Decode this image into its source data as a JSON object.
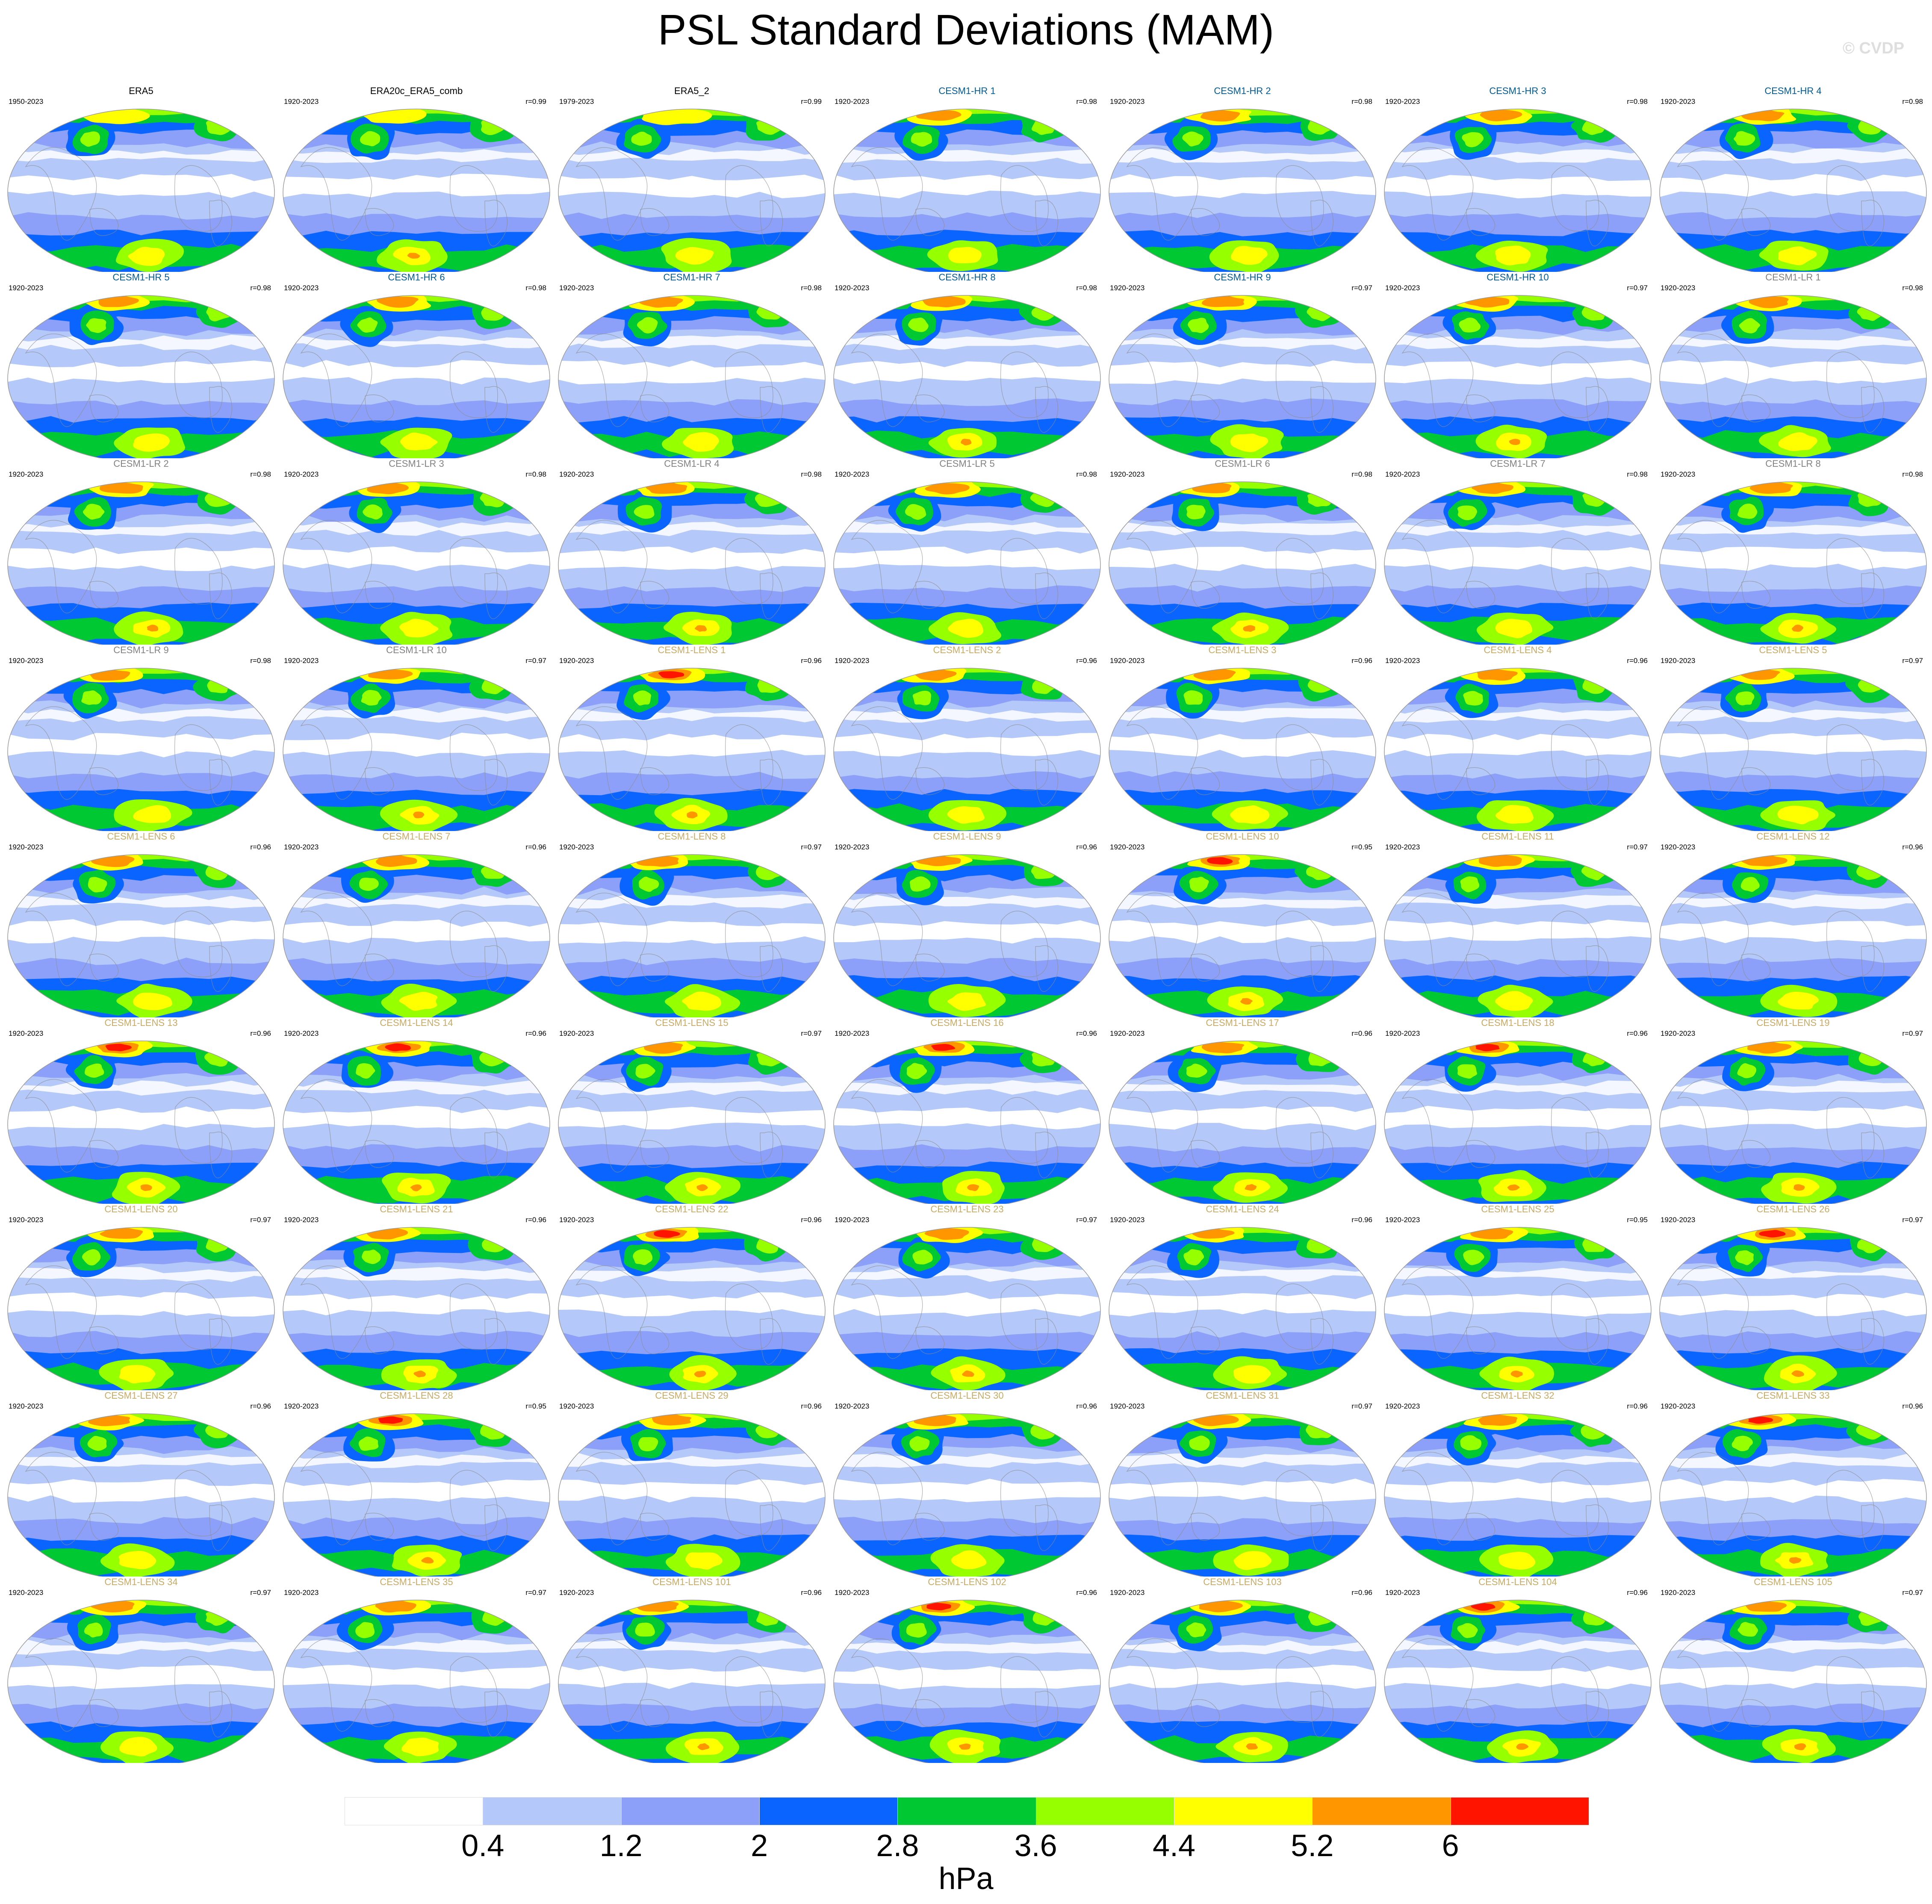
{
  "title": "PSL Standard Deviations (MAM)",
  "credit": "© CVDP",
  "units": "hPa",
  "colorbar": {
    "ticks": [
      "0.4",
      "1.2",
      "2",
      "2.8",
      "3.6",
      "4.4",
      "5.2",
      "6"
    ],
    "colors": [
      "#ffffff",
      "#b4c8fa",
      "#8ca0fa",
      "#0a64ff",
      "#00c832",
      "#96ff00",
      "#ffff00",
      "#ff9600",
      "#ff1400"
    ]
  },
  "title_colors": {
    "obs": "#000000",
    "hr": "#005a96",
    "lr": "#828282",
    "lens": "#c8aa64"
  },
  "panels": [
    {
      "name": "ERA5",
      "years": "1950-2023",
      "r": "",
      "group": "obs",
      "peak": 4
    },
    {
      "name": "ERA20c_ERA5_comb",
      "years": "1920-2023",
      "r": "r=0.99",
      "group": "obs",
      "peak": 4
    },
    {
      "name": "ERA5_2",
      "years": "1979-2023",
      "r": "r=0.99",
      "group": "obs",
      "peak": 4
    },
    {
      "name": "CESM1-HR 1",
      "years": "1920-2023",
      "r": "r=0.98",
      "group": "hr",
      "peak": 5
    },
    {
      "name": "CESM1-HR 2",
      "years": "1920-2023",
      "r": "r=0.98",
      "group": "hr",
      "peak": 5
    },
    {
      "name": "CESM1-HR 3",
      "years": "1920-2023",
      "r": "r=0.98",
      "group": "hr",
      "peak": 5
    },
    {
      "name": "CESM1-HR 4",
      "years": "1920-2023",
      "r": "r=0.98",
      "group": "hr",
      "peak": 5
    },
    {
      "name": "CESM1-HR 5",
      "years": "1920-2023",
      "r": "r=0.98",
      "group": "hr",
      "peak": 5
    },
    {
      "name": "CESM1-HR 6",
      "years": "1920-2023",
      "r": "r=0.98",
      "group": "hr",
      "peak": 5
    },
    {
      "name": "CESM1-HR 7",
      "years": "1920-2023",
      "r": "r=0.98",
      "group": "hr",
      "peak": 5
    },
    {
      "name": "CESM1-HR 8",
      "years": "1920-2023",
      "r": "r=0.98",
      "group": "hr",
      "peak": 5
    },
    {
      "name": "CESM1-HR 9",
      "years": "1920-2023",
      "r": "r=0.97",
      "group": "hr",
      "peak": 5
    },
    {
      "name": "CESM1-HR 10",
      "years": "1920-2023",
      "r": "r=0.97",
      "group": "hr",
      "peak": 5
    },
    {
      "name": "CESM1-LR 1",
      "years": "1920-2023",
      "r": "r=0.98",
      "group": "lr",
      "peak": 5
    },
    {
      "name": "CESM1-LR 2",
      "years": "1920-2023",
      "r": "r=0.98",
      "group": "lr",
      "peak": 5
    },
    {
      "name": "CESM1-LR 3",
      "years": "1920-2023",
      "r": "r=0.98",
      "group": "lr",
      "peak": 5
    },
    {
      "name": "CESM1-LR 4",
      "years": "1920-2023",
      "r": "r=0.98",
      "group": "lr",
      "peak": 5
    },
    {
      "name": "CESM1-LR 5",
      "years": "1920-2023",
      "r": "r=0.98",
      "group": "lr",
      "peak": 5
    },
    {
      "name": "CESM1-LR 6",
      "years": "1920-2023",
      "r": "r=0.98",
      "group": "lr",
      "peak": 5
    },
    {
      "name": "CESM1-LR 7",
      "years": "1920-2023",
      "r": "r=0.98",
      "group": "lr",
      "peak": 5
    },
    {
      "name": "CESM1-LR 8",
      "years": "1920-2023",
      "r": "r=0.98",
      "group": "lr",
      "peak": 5
    },
    {
      "name": "CESM1-LR 9",
      "years": "1920-2023",
      "r": "r=0.98",
      "group": "lr",
      "peak": 5
    },
    {
      "name": "CESM1-LR 10",
      "years": "1920-2023",
      "r": "r=0.97",
      "group": "lr",
      "peak": 5
    },
    {
      "name": "CESM1-LENS 1",
      "years": "1920-2023",
      "r": "r=0.96",
      "group": "lens",
      "peak": 6
    },
    {
      "name": "CESM1-LENS 2",
      "years": "1920-2023",
      "r": "r=0.96",
      "group": "lens",
      "peak": 5
    },
    {
      "name": "CESM1-LENS 3",
      "years": "1920-2023",
      "r": "r=0.96",
      "group": "lens",
      "peak": 5
    },
    {
      "name": "CESM1-LENS 4",
      "years": "1920-2023",
      "r": "r=0.96",
      "group": "lens",
      "peak": 5
    },
    {
      "name": "CESM1-LENS 5",
      "years": "1920-2023",
      "r": "r=0.97",
      "group": "lens",
      "peak": 5
    },
    {
      "name": "CESM1-LENS 6",
      "years": "1920-2023",
      "r": "r=0.96",
      "group": "lens",
      "peak": 5
    },
    {
      "name": "CESM1-LENS 7",
      "years": "1920-2023",
      "r": "r=0.96",
      "group": "lens",
      "peak": 5
    },
    {
      "name": "CESM1-LENS 8",
      "years": "1920-2023",
      "r": "r=0.97",
      "group": "lens",
      "peak": 5
    },
    {
      "name": "CESM1-LENS 9",
      "years": "1920-2023",
      "r": "r=0.96",
      "group": "lens",
      "peak": 5
    },
    {
      "name": "CESM1-LENS 10",
      "years": "1920-2023",
      "r": "r=0.95",
      "group": "lens",
      "peak": 6
    },
    {
      "name": "CESM1-LENS 11",
      "years": "1920-2023",
      "r": "r=0.97",
      "group": "lens",
      "peak": 5
    },
    {
      "name": "CESM1-LENS 12",
      "years": "1920-2023",
      "r": "r=0.96",
      "group": "lens",
      "peak": 5
    },
    {
      "name": "CESM1-LENS 13",
      "years": "1920-2023",
      "r": "r=0.96",
      "group": "lens",
      "peak": 6
    },
    {
      "name": "CESM1-LENS 14",
      "years": "1920-2023",
      "r": "r=0.96",
      "group": "lens",
      "peak": 6
    },
    {
      "name": "CESM1-LENS 15",
      "years": "1920-2023",
      "r": "r=0.97",
      "group": "lens",
      "peak": 5
    },
    {
      "name": "CESM1-LENS 16",
      "years": "1920-2023",
      "r": "r=0.96",
      "group": "lens",
      "peak": 6
    },
    {
      "name": "CESM1-LENS 17",
      "years": "1920-2023",
      "r": "r=0.96",
      "group": "lens",
      "peak": 5
    },
    {
      "name": "CESM1-LENS 18",
      "years": "1920-2023",
      "r": "r=0.96",
      "group": "lens",
      "peak": 6
    },
    {
      "name": "CESM1-LENS 19",
      "years": "1920-2023",
      "r": "r=0.97",
      "group": "lens",
      "peak": 5
    },
    {
      "name": "CESM1-LENS 20",
      "years": "1920-2023",
      "r": "r=0.97",
      "group": "lens",
      "peak": 5
    },
    {
      "name": "CESM1-LENS 21",
      "years": "1920-2023",
      "r": "r=0.96",
      "group": "lens",
      "peak": 5
    },
    {
      "name": "CESM1-LENS 22",
      "years": "1920-2023",
      "r": "r=0.96",
      "group": "lens",
      "peak": 6
    },
    {
      "name": "CESM1-LENS 23",
      "years": "1920-2023",
      "r": "r=0.97",
      "group": "lens",
      "peak": 5
    },
    {
      "name": "CESM1-LENS 24",
      "years": "1920-2023",
      "r": "r=0.96",
      "group": "lens",
      "peak": 5
    },
    {
      "name": "CESM1-LENS 25",
      "years": "1920-2023",
      "r": "r=0.95",
      "group": "lens",
      "peak": 5
    },
    {
      "name": "CESM1-LENS 26",
      "years": "1920-2023",
      "r": "r=0.97",
      "group": "lens",
      "peak": 6
    },
    {
      "name": "CESM1-LENS 27",
      "years": "1920-2023",
      "r": "r=0.96",
      "group": "lens",
      "peak": 5
    },
    {
      "name": "CESM1-LENS 28",
      "years": "1920-2023",
      "r": "r=0.95",
      "group": "lens",
      "peak": 6
    },
    {
      "name": "CESM1-LENS 29",
      "years": "1920-2023",
      "r": "r=0.96",
      "group": "lens",
      "peak": 5
    },
    {
      "name": "CESM1-LENS 30",
      "years": "1920-2023",
      "r": "r=0.96",
      "group": "lens",
      "peak": 5
    },
    {
      "name": "CESM1-LENS 31",
      "years": "1920-2023",
      "r": "r=0.97",
      "group": "lens",
      "peak": 5
    },
    {
      "name": "CESM1-LENS 32",
      "years": "1920-2023",
      "r": "r=0.96",
      "group": "lens",
      "peak": 5
    },
    {
      "name": "CESM1-LENS 33",
      "years": "1920-2023",
      "r": "r=0.96",
      "group": "lens",
      "peak": 6
    },
    {
      "name": "CESM1-LENS 34",
      "years": "1920-2023",
      "r": "r=0.97",
      "group": "lens",
      "peak": 5
    },
    {
      "name": "CESM1-LENS 35",
      "years": "1920-2023",
      "r": "r=0.97",
      "group": "lens",
      "peak": 5
    },
    {
      "name": "CESM1-LENS 101",
      "years": "1920-2023",
      "r": "r=0.96",
      "group": "lens",
      "peak": 5
    },
    {
      "name": "CESM1-LENS 102",
      "years": "1920-2023",
      "r": "r=0.96",
      "group": "lens",
      "peak": 6
    },
    {
      "name": "CESM1-LENS 103",
      "years": "1920-2023",
      "r": "r=0.96",
      "group": "lens",
      "peak": 5
    },
    {
      "name": "CESM1-LENS 104",
      "years": "1920-2023",
      "r": "r=0.96",
      "group": "lens",
      "peak": 6
    },
    {
      "name": "CESM1-LENS 105",
      "years": "1920-2023",
      "r": "r=0.97",
      "group": "lens",
      "peak": 5
    }
  ]
}
